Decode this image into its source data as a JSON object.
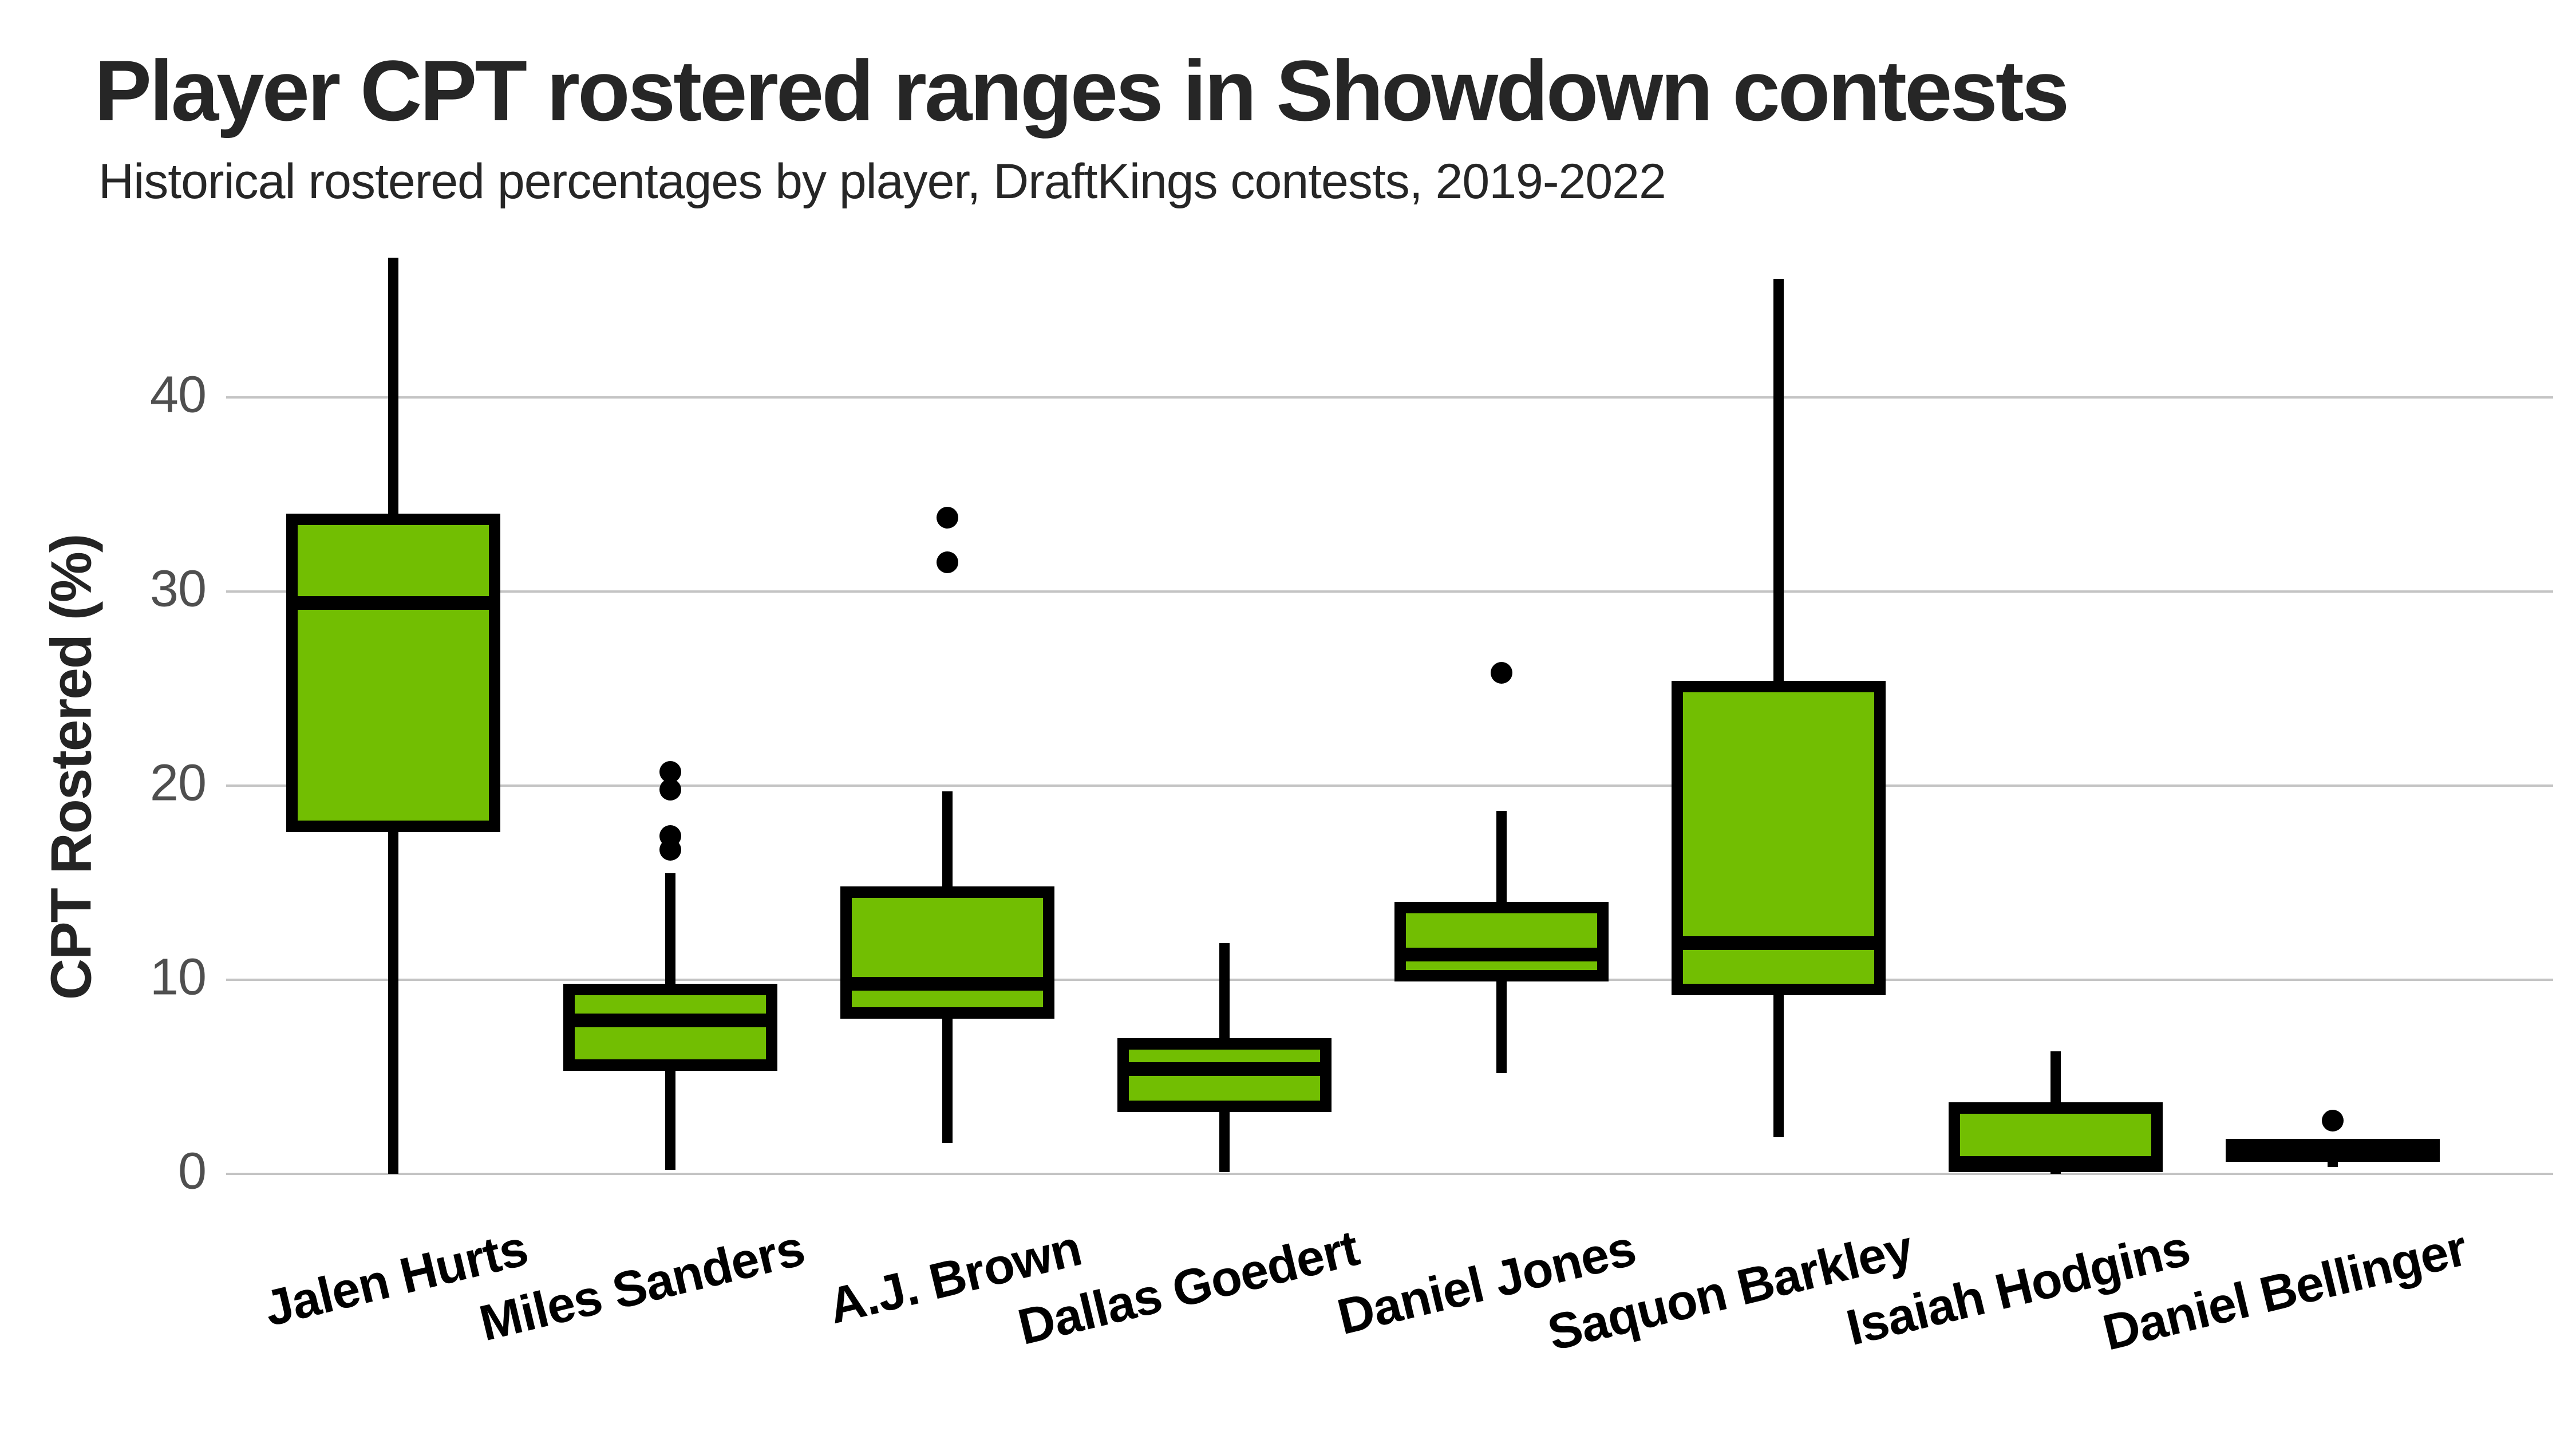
{
  "header": {
    "title": "Player CPT rostered ranges in Showdown contests",
    "subtitle": "Historical rostered percentages by player, DraftKings contests, 2019-2022"
  },
  "chart_data": {
    "type": "boxplot",
    "title": "Player CPT rostered ranges in Showdown contests",
    "subtitle": "Historical rostered percentages by player, DraftKings contests, 2019-2022",
    "xlabel": "",
    "ylabel": "CPT Rostered (%)",
    "ylim": [
      0,
      47.5
    ],
    "yticks": [
      0,
      10,
      20,
      30,
      40
    ],
    "grid": "horizontal-only",
    "legend": "none",
    "colors": {
      "box_fill": "#72be02",
      "box_border": "#000000",
      "median": "#000000",
      "whisker": "#000000",
      "outlier": "#000000",
      "gridline": "#c4c4c4",
      "tick_label": "#4f4f4f",
      "title": "#262626"
    },
    "categories": [
      "Jalen Hurts",
      "Miles Sanders",
      "A.J. Brown",
      "Dallas Goedert",
      "Daniel Jones",
      "Saquon Barkley",
      "Isaiah Hodgins",
      "Daniel Bellinger"
    ],
    "series": [
      {
        "name": "Jalen Hurts",
        "min": 0.0,
        "q1": 17.6,
        "median": 29.4,
        "q3": 34.0,
        "max": 47.2,
        "outliers": []
      },
      {
        "name": "Miles Sanders",
        "min": 0.2,
        "q1": 5.3,
        "median": 7.9,
        "q3": 9.8,
        "max": 15.5,
        "outliers": [
          16.7,
          17.4,
          19.8,
          20.7
        ]
      },
      {
        "name": "A.J. Brown",
        "min": 1.6,
        "q1": 8.0,
        "median": 9.8,
        "q3": 14.8,
        "max": 19.7,
        "outliers": [
          31.5,
          33.8
        ]
      },
      {
        "name": "Dallas Goedert",
        "min": 0.1,
        "q1": 3.2,
        "median": 5.4,
        "q3": 7.0,
        "max": 11.9,
        "outliers": []
      },
      {
        "name": "Daniel Jones",
        "min": 5.2,
        "q1": 9.9,
        "median": 11.3,
        "q3": 14.0,
        "max": 18.7,
        "outliers": [
          25.8
        ]
      },
      {
        "name": "Saquon Barkley",
        "min": 1.9,
        "q1": 9.2,
        "median": 11.9,
        "q3": 25.4,
        "max": 46.1,
        "outliers": []
      },
      {
        "name": "Isaiah Hodgins",
        "min": 0.0,
        "q1": 0.1,
        "median": 0.55,
        "q3": 3.7,
        "max": 6.3,
        "outliers": []
      },
      {
        "name": "Daniel Bellinger",
        "min": 0.35,
        "q1": 0.95,
        "median": 1.35,
        "q3": 1.8,
        "max": 1.8,
        "outliers": [
          2.75
        ],
        "fill": "black"
      }
    ]
  }
}
